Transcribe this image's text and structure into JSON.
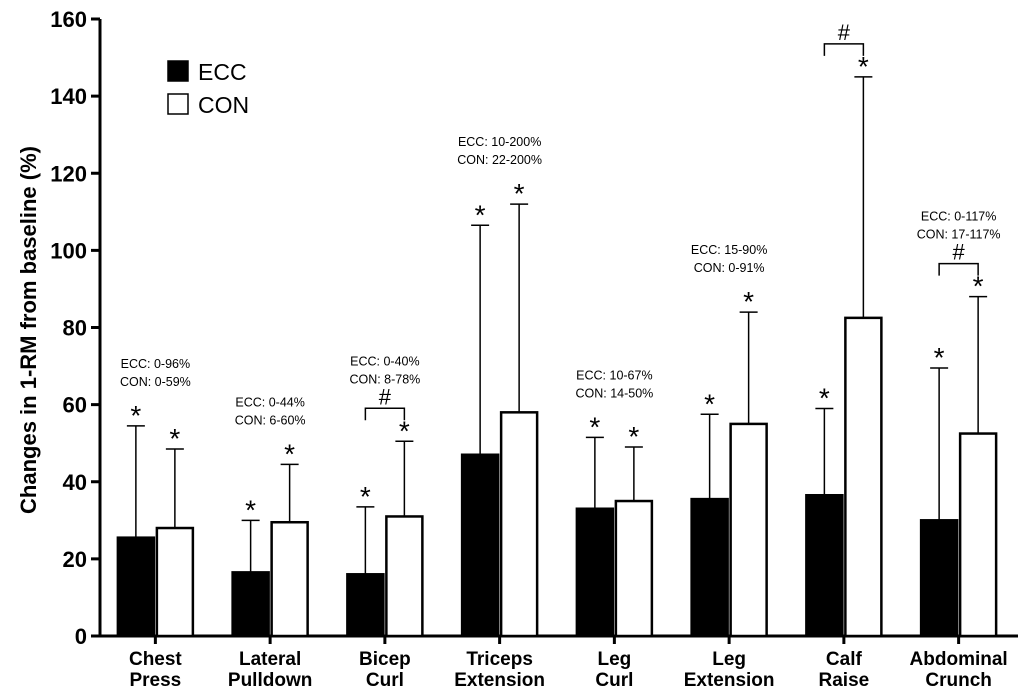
{
  "chart_data": {
    "type": "bar",
    "ylabel": "Changes in 1-RM from baseline (%)",
    "ylim": [
      0,
      160
    ],
    "yticks": [
      0,
      20,
      40,
      60,
      80,
      100,
      120,
      140,
      160
    ],
    "grid": false,
    "legend_placement": "top-left",
    "categories": [
      [
        "Chest",
        "Press"
      ],
      [
        "Lateral",
        "Pulldown"
      ],
      [
        "Bicep",
        "Curl"
      ],
      [
        "Triceps",
        "Extension"
      ],
      [
        "Leg",
        "Curl"
      ],
      [
        "Leg",
        "Extension"
      ],
      [
        "Calf",
        "Raise"
      ],
      [
        "Abdominal",
        "Crunch"
      ]
    ],
    "series": [
      {
        "name": "ECC",
        "color": "#000000",
        "values": [
          25.5,
          16.5,
          16,
          47,
          33,
          35.5,
          36.5,
          30
        ],
        "error_upper": [
          54.5,
          30,
          33.5,
          106.5,
          51.5,
          57.5,
          59,
          69.5
        ],
        "significance": [
          "*",
          "*",
          "*",
          "*",
          "*",
          "*",
          "*",
          "*"
        ]
      },
      {
        "name": "CON",
        "color": "#ffffff",
        "values": [
          28,
          29.5,
          31,
          58,
          35,
          55,
          82.5,
          52.5
        ],
        "error_upper": [
          48.5,
          44.5,
          50.5,
          112,
          49,
          84,
          145,
          88
        ],
        "significance": [
          "*",
          "*",
          "*",
          "*",
          "*",
          "*",
          "*",
          "*"
        ]
      }
    ],
    "between_group_markers": [
      {
        "category_index": 2,
        "symbol": "#"
      },
      {
        "category_index": 6,
        "symbol": "#"
      },
      {
        "category_index": 7,
        "symbol": "#"
      }
    ],
    "range_annotations": [
      {
        "category_index": 0,
        "lines": [
          "ECC: 0-96%",
          "CON: 0-59%"
        ]
      },
      {
        "category_index": 1,
        "lines": [
          "ECC: 0-44%",
          "CON: 6-60%"
        ]
      },
      {
        "category_index": 2,
        "lines": [
          "ECC: 0-40%",
          "CON: 8-78%"
        ]
      },
      {
        "category_index": 3,
        "lines": [
          "ECC: 10-200%",
          "CON: 22-200%"
        ]
      },
      {
        "category_index": 4,
        "lines": [
          "ECC: 10-67%",
          "CON: 14-50%"
        ]
      },
      {
        "category_index": 5,
        "lines": [
          "ECC: 15-90%",
          "CON: 0-91%"
        ]
      },
      {
        "category_index": 6,
        "lines": []
      },
      {
        "category_index": 7,
        "lines": [
          "ECC: 0-117%",
          "CON: 17-117%"
        ]
      }
    ]
  }
}
